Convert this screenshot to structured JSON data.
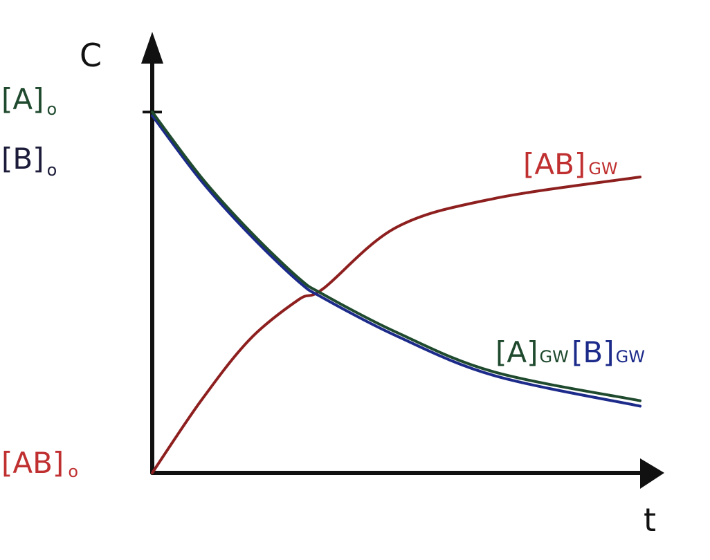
{
  "chart_data": {
    "type": "line",
    "ylabel": "C",
    "xlabel": "t",
    "y_tick_labels": [
      {
        "base": "[A]",
        "sub": "o"
      },
      {
        "base": "[B]",
        "sub": "o"
      },
      {
        "base": "[AB]",
        "sub": "o"
      }
    ],
    "series": [
      {
        "name": "[A]",
        "subscript": "GW",
        "color": "#1f4a2e",
        "x": [
          0,
          0.1,
          0.2,
          0.3,
          0.35,
          0.5,
          0.7,
          1.0
        ],
        "y": [
          1.0,
          0.82,
          0.67,
          0.54,
          0.495,
          0.39,
          0.28,
          0.2
        ]
      },
      {
        "name": "[B]",
        "subscript": "GW",
        "color": "#1c2a8a",
        "x": [
          0,
          0.1,
          0.2,
          0.3,
          0.35,
          0.5,
          0.7,
          1.0
        ],
        "y": [
          0.99,
          0.81,
          0.66,
          0.53,
          0.485,
          0.38,
          0.27,
          0.185
        ]
      },
      {
        "name": "[AB]",
        "subscript": "GW",
        "color": "#8e1f1f",
        "x": [
          0,
          0.1,
          0.2,
          0.3,
          0.35,
          0.5,
          0.7,
          1.0
        ],
        "y": [
          0.0,
          0.2,
          0.37,
          0.48,
          0.51,
          0.68,
          0.76,
          0.82
        ]
      }
    ],
    "colors": {
      "axis": "#111111",
      "label_A": "#1f4a2e",
      "label_B": "#1c2a8a",
      "label_AB": "#c03030"
    }
  }
}
